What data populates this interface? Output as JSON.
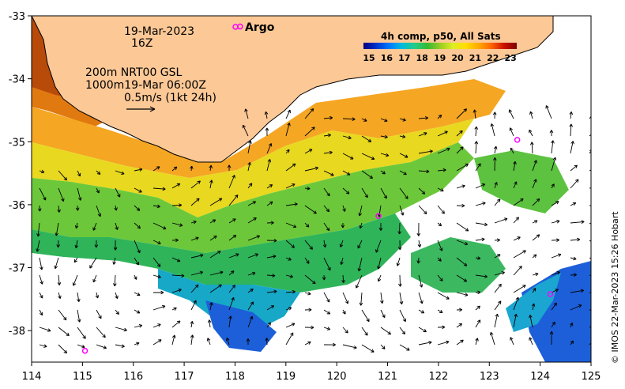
{
  "map": {
    "date": "19-Mar-2023",
    "hour": "16Z",
    "depth_line1": "200m  NRT00 GSL",
    "depth_line2": "1000m19-Mar 06:00Z",
    "vector_scale": "0.5m/s (1kt 24h)",
    "argo_label": "Argo",
    "colorbar_title": "4h comp, p50, All Sats",
    "colorbar_ticks": [
      "15",
      "16",
      "17",
      "18",
      "19",
      "20",
      "21",
      "22",
      "23"
    ],
    "colorbar_colors": [
      "#00007f",
      "#0033cc",
      "#0077ff",
      "#00bbdd",
      "#22cc88",
      "#33bb33",
      "#99cc22",
      "#ddee22",
      "#ffdd00",
      "#ffaa00",
      "#ff6600",
      "#cc1100",
      "#7f0000"
    ],
    "side_credit": "© IMOS 22-Mar-2023 15:26 Hobart",
    "lat_labels": [
      "-33",
      "-34",
      "-35",
      "-36",
      "-37",
      "-38"
    ],
    "lon_labels": [
      "114",
      "115",
      "116",
      "117",
      "118",
      "119",
      "120",
      "121",
      "122",
      "123",
      "124",
      "125"
    ],
    "lat_range": [
      -38.5,
      -33
    ],
    "lon_range": [
      114,
      125
    ],
    "argo_floats": [
      {
        "lon": 118.1,
        "lat": -33.17
      },
      {
        "lon": 123.55,
        "lat": -34.97
      },
      {
        "lon": 120.82,
        "lat": -36.18
      },
      {
        "lon": 124.2,
        "lat": -37.42
      },
      {
        "lon": 115.05,
        "lat": -38.32
      }
    ],
    "colors": {
      "land": "#fcc896",
      "argo": "#ff00ff",
      "coast": "#000000"
    }
  }
}
